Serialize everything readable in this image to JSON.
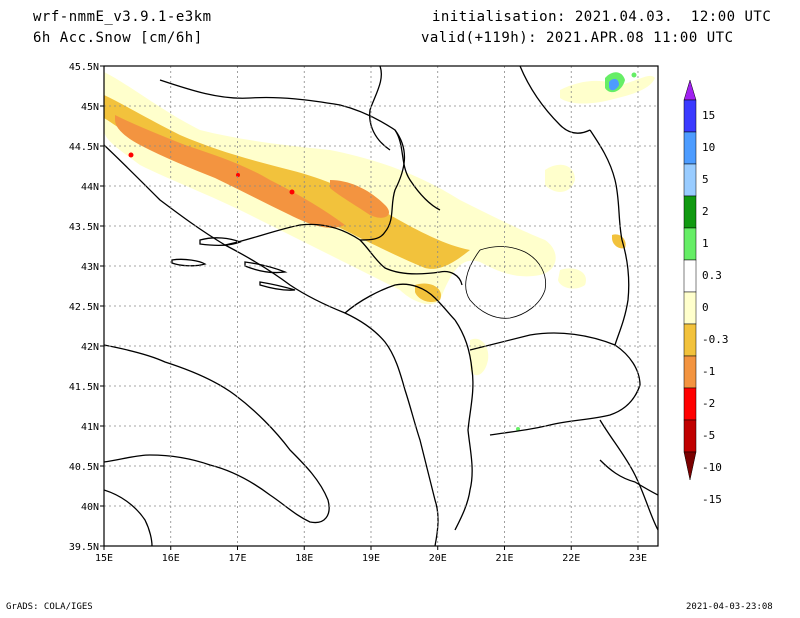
{
  "header": {
    "model": "wrf-nmmE_v3.9.1-e3km",
    "field": "6h Acc.Snow [cm/6h]",
    "init": "initialisation: 2021.04.03.  12:00 UTC",
    "valid": "valid(+119h): 2021.APR.08 11:00 UTC"
  },
  "footer": {
    "credit": "GrADS: COLA/IGES",
    "timestamp": "2021-04-03-23:08"
  },
  "map": {
    "lon_labels": [
      "15E",
      "16E",
      "17E",
      "18E",
      "19E",
      "20E",
      "21E",
      "22E",
      "23E"
    ],
    "lat_labels": [
      "45.5N",
      "45N",
      "44.5N",
      "44N",
      "43.5N",
      "43N",
      "42.5N",
      "42N",
      "41.5N",
      "41N",
      "40.5N",
      "40N",
      "39.5N"
    ],
    "lon_range": [
      15,
      23.3
    ],
    "lat_range": [
      39.5,
      45.5
    ]
  },
  "colorbar": {
    "labels": [
      "15",
      "10",
      "5",
      "2",
      "1",
      "0.3",
      "0",
      "-0.3",
      "-1",
      "-2",
      "-5",
      "-10",
      "-15"
    ],
    "colors": [
      "#a020f0",
      "#3a3aff",
      "#4d9cff",
      "#99ccff",
      "#119a11",
      "#66ee66",
      "#ffffff",
      "#ffffcc",
      "#f2c23c",
      "#f39440",
      "#ff0000",
      "#c00000",
      "#7a0000"
    ]
  },
  "snow_colors": {
    "light": "#ffffcc",
    "moderate": "#f2c23c",
    "heavy": "#f39440",
    "extreme": "#ff0000",
    "green": "#66ee66",
    "blue": "#4d9cff"
  }
}
